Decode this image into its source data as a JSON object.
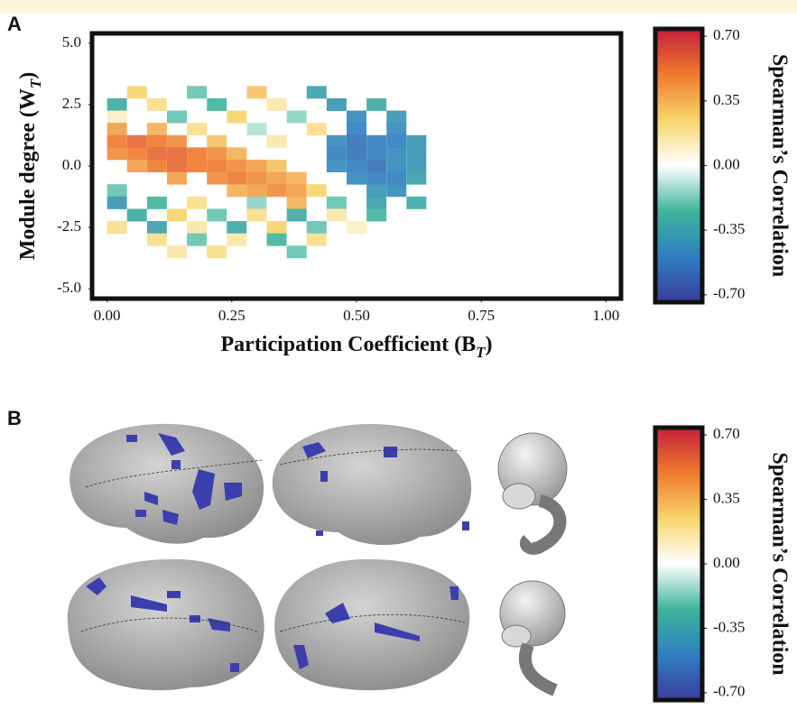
{
  "chart_data": [
    {
      "type": "heatmap",
      "label": "A",
      "xlabel": [
        "Participation Coefficient (B",
        "T",
        ")"
      ],
      "ylabel": [
        "Module degree (W",
        "T",
        ")"
      ],
      "xlim": [
        -0.03,
        1.03
      ],
      "ylim": [
        -5.4,
        5.4
      ],
      "xticks": [
        {
          "value": 0,
          "label": "0.00"
        },
        {
          "value": 0.25,
          "label": "0.25"
        },
        {
          "value": 0.5,
          "label": "0.50"
        },
        {
          "value": 0.75,
          "label": "0.75"
        },
        {
          "value": 1,
          "label": "1.00"
        }
      ],
      "yticks": [
        {
          "value": 5,
          "label": "5.0"
        },
        {
          "value": 2.5,
          "label": "2.5"
        },
        {
          "value": 0,
          "label": "0.0"
        },
        {
          "value": -2.5,
          "label": "-2.5"
        },
        {
          "value": -5,
          "label": "-5.0"
        }
      ],
      "x": [
        0.06,
        0.18,
        0.3,
        0.42,
        0.02,
        0.1,
        0.22,
        0.34,
        0.46,
        0.54,
        0.02,
        0.14,
        0.26,
        0.38,
        0.5,
        0.58,
        0.02,
        0.1,
        0.18,
        0.3,
        0.42,
        0.5,
        0.58,
        0.02,
        0.06,
        0.1,
        0.14,
        0.22,
        0.34,
        0.46,
        0.5,
        0.54,
        0.58,
        0.62,
        0.02,
        0.06,
        0.1,
        0.14,
        0.18,
        0.22,
        0.26,
        0.46,
        0.5,
        0.54,
        0.58,
        0.62,
        0.06,
        0.1,
        0.14,
        0.18,
        0.22,
        0.26,
        0.3,
        0.34,
        0.46,
        0.5,
        0.54,
        0.58,
        0.62,
        0.14,
        0.22,
        0.26,
        0.3,
        0.34,
        0.38,
        0.5,
        0.54,
        0.58,
        0.62,
        0.02,
        0.26,
        0.3,
        0.34,
        0.38,
        0.42,
        0.54,
        0.58,
        0.02,
        0.1,
        0.18,
        0.3,
        0.38,
        0.46,
        0.54,
        0.62,
        0.06,
        0.14,
        0.22,
        0.3,
        0.38,
        0.46,
        0.54,
        0.02,
        0.1,
        0.18,
        0.26,
        0.34,
        0.42,
        0.5,
        0.1,
        0.18,
        0.26,
        0.34,
        0.42,
        0.14,
        0.22,
        0.38
      ],
      "y": [
        3,
        3,
        3,
        3,
        2.5,
        2.5,
        2.5,
        2.5,
        2.5,
        2.5,
        2,
        2,
        2,
        2,
        2,
        2,
        1.5,
        1.5,
        1.5,
        1.5,
        1.5,
        1.5,
        1.5,
        1,
        1,
        1,
        1,
        1,
        1,
        1,
        1,
        1,
        1,
        1,
        0.5,
        0.5,
        0.5,
        0.5,
        0.5,
        0.5,
        0.5,
        0.5,
        0.5,
        0.5,
        0.5,
        0.5,
        0,
        0,
        0,
        0,
        0,
        0,
        0,
        0,
        0,
        0,
        0,
        0,
        0,
        -0.5,
        -0.5,
        -0.5,
        -0.5,
        -0.5,
        -0.5,
        -0.5,
        -0.5,
        -0.5,
        -0.5,
        -1,
        -1,
        -1,
        -1,
        -1,
        -1,
        -1,
        -1,
        -1.5,
        -1.5,
        -1.5,
        -1.5,
        -1.5,
        -1.5,
        -1.5,
        -1.5,
        -2,
        -2,
        -2,
        -2,
        -2,
        -2,
        -2,
        -2.5,
        -2.5,
        -2.5,
        -2.5,
        -2.5,
        -2.5,
        -2.5,
        -3,
        -3,
        -3,
        -3,
        -3,
        -3.5,
        -3.5,
        -3.5
      ],
      "values": [
        0.25,
        -0.2,
        0.3,
        -0.35,
        -0.3,
        0.2,
        -0.25,
        0.15,
        -0.4,
        -0.3,
        0.1,
        -0.2,
        0.25,
        -0.15,
        -0.45,
        -0.4,
        0.4,
        0.35,
        0.2,
        -0.1,
        0.2,
        -0.5,
        -0.45,
        0.5,
        0.55,
        0.5,
        0.45,
        0.3,
        0.15,
        -0.45,
        -0.55,
        -0.5,
        -0.5,
        -0.4,
        0.45,
        0.5,
        0.55,
        0.55,
        0.5,
        0.45,
        0.35,
        -0.5,
        -0.55,
        -0.5,
        -0.45,
        -0.4,
        0.4,
        0.5,
        0.55,
        0.5,
        0.5,
        0.45,
        0.4,
        0.3,
        -0.45,
        -0.5,
        -0.55,
        -0.45,
        -0.4,
        0.4,
        0.45,
        0.5,
        0.45,
        0.4,
        0.35,
        -0.45,
        -0.5,
        -0.5,
        -0.35,
        -0.2,
        0.35,
        0.4,
        0.45,
        0.4,
        0.25,
        -0.4,
        -0.45,
        -0.4,
        -0.25,
        0.2,
        -0.15,
        0.35,
        -0.2,
        -0.35,
        -0.3,
        -0.3,
        0.25,
        -0.2,
        0.2,
        -0.3,
        0.15,
        -0.25,
        0.2,
        -0.35,
        0.15,
        -0.3,
        0.25,
        -0.2,
        0.1,
        0.2,
        -0.2,
        0.15,
        -0.25,
        0.2,
        0.15,
        0.2,
        -0.2
      ],
      "colorbar": {
        "title": "Spearman’s Correlation",
        "clim": [
          -0.74,
          0.74
        ],
        "colors": [
          "#3a3c9c",
          "#2f7fc1",
          "#3eb59a",
          "#ffffff",
          "#f6d56b",
          "#ef7a2e",
          "#c51f3c"
        ],
        "ticks": [
          {
            "value": 0.7,
            "label": "0.70"
          },
          {
            "value": 0.35,
            "label": "0.35"
          },
          {
            "value": 0,
            "label": "0.00"
          },
          {
            "value": -0.35,
            "label": "-0.35"
          },
          {
            "value": -0.7,
            "label": "-0.70"
          }
        ]
      }
    },
    {
      "type": "colorbar",
      "label": "B",
      "colorbar": {
        "title": "Spearman’s Correlation",
        "clim": [
          -0.74,
          0.74
        ],
        "colors": [
          "#3a3c9c",
          "#2f7fc1",
          "#3eb59a",
          "#ffffff",
          "#f6d56b",
          "#ef7a2e",
          "#c51f3c"
        ],
        "ticks": [
          {
            "value": 0.7,
            "label": "0.70"
          },
          {
            "value": 0.35,
            "label": "0.35"
          },
          {
            "value": 0,
            "label": "0.00"
          },
          {
            "value": -0.35,
            "label": "-0.35"
          },
          {
            "value": -0.7,
            "label": "-0.70"
          }
        ]
      }
    }
  ]
}
